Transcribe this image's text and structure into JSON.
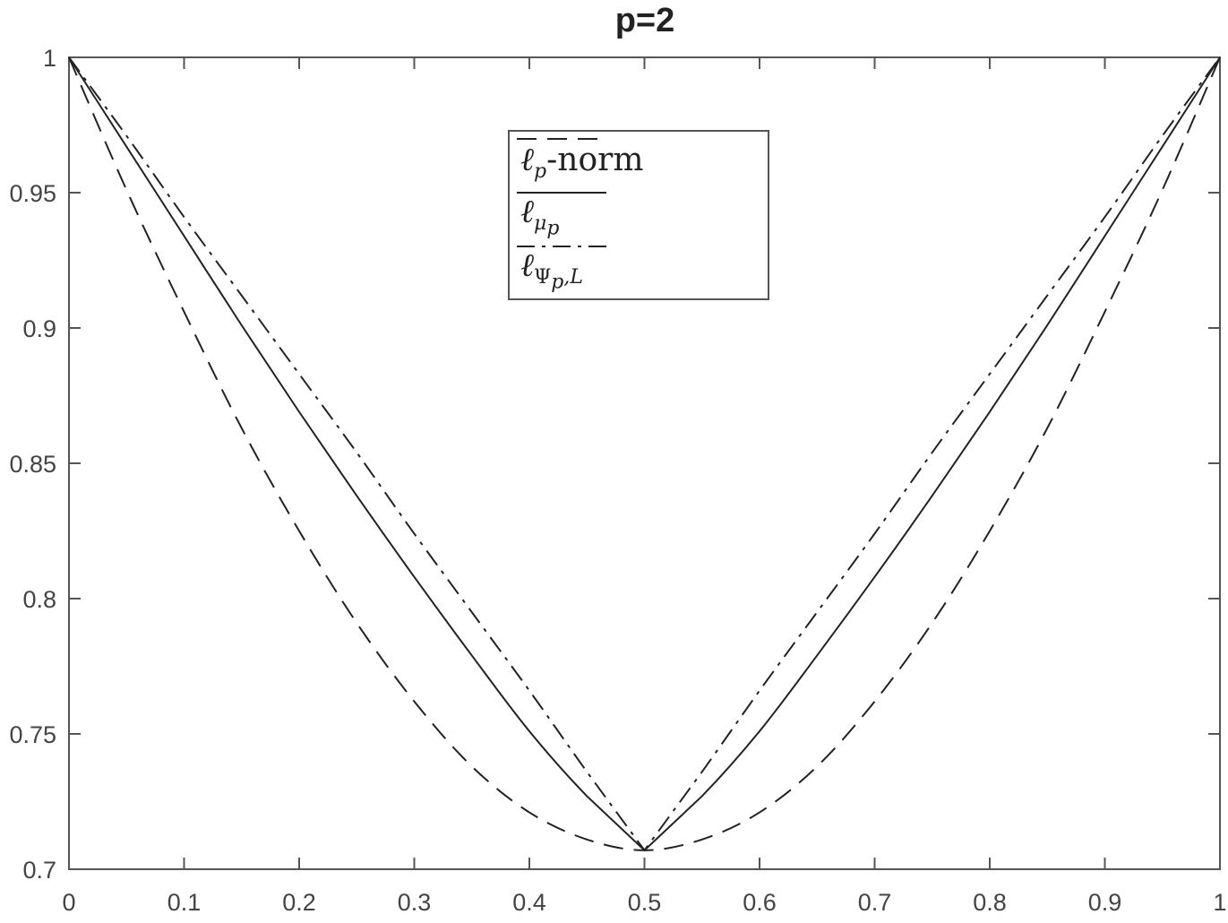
{
  "chart_data": {
    "type": "line",
    "title": "p=2",
    "xlabel": "",
    "ylabel": "",
    "xlim": [
      0,
      1
    ],
    "ylim": [
      0.7,
      1
    ],
    "grid": false,
    "legend_position": "upper center (inside)",
    "xticks": [
      "0",
      "0.1",
      "0.2",
      "0.3",
      "0.4",
      "0.5",
      "0.6",
      "0.7",
      "0.8",
      "0.9",
      "1"
    ],
    "yticks": [
      "0.7",
      "0.75",
      "0.8",
      "0.85",
      "0.9",
      "0.95",
      "1"
    ],
    "x": [
      0,
      0.05,
      0.1,
      0.15,
      0.2,
      0.25,
      0.3,
      0.35,
      0.4,
      0.45,
      0.5,
      0.55,
      0.6,
      0.65,
      0.7,
      0.75,
      0.8,
      0.85,
      0.9,
      0.95,
      1
    ],
    "series": [
      {
        "name": "ℓp-norm",
        "style": "dashed",
        "values": [
          1.0,
          0.951,
          0.906,
          0.863,
          0.825,
          0.791,
          0.762,
          0.738,
          0.721,
          0.711,
          0.707,
          0.711,
          0.721,
          0.738,
          0.762,
          0.791,
          0.825,
          0.863,
          0.906,
          0.951,
          1.0
        ]
      },
      {
        "name": "ℓμp",
        "style": "solid",
        "values": [
          1.0,
          0.967,
          0.934,
          0.901,
          0.869,
          0.838,
          0.808,
          0.779,
          0.751,
          0.727,
          0.707,
          0.727,
          0.751,
          0.779,
          0.808,
          0.838,
          0.869,
          0.901,
          0.934,
          0.967,
          1.0
        ]
      },
      {
        "name": "ℓΨp,L",
        "style": "dash-dot",
        "values": [
          1.0,
          0.971,
          0.941,
          0.912,
          0.883,
          0.854,
          0.824,
          0.795,
          0.766,
          0.736,
          0.707,
          0.736,
          0.766,
          0.795,
          0.824,
          0.854,
          0.883,
          0.912,
          0.941,
          0.971,
          1.0
        ]
      }
    ]
  },
  "legend": {
    "items": [
      {
        "base": "ℓ",
        "sub": "p",
        "suffix": "-norm"
      },
      {
        "base": "ℓ",
        "sub": "μ",
        "subsub": "p"
      },
      {
        "base": "ℓ",
        "sub": "Ψ",
        "subsub": "p",
        "subtail": ",L"
      }
    ]
  },
  "colors": {
    "axis": "#555555",
    "line": "#222222",
    "text": "#444444"
  }
}
